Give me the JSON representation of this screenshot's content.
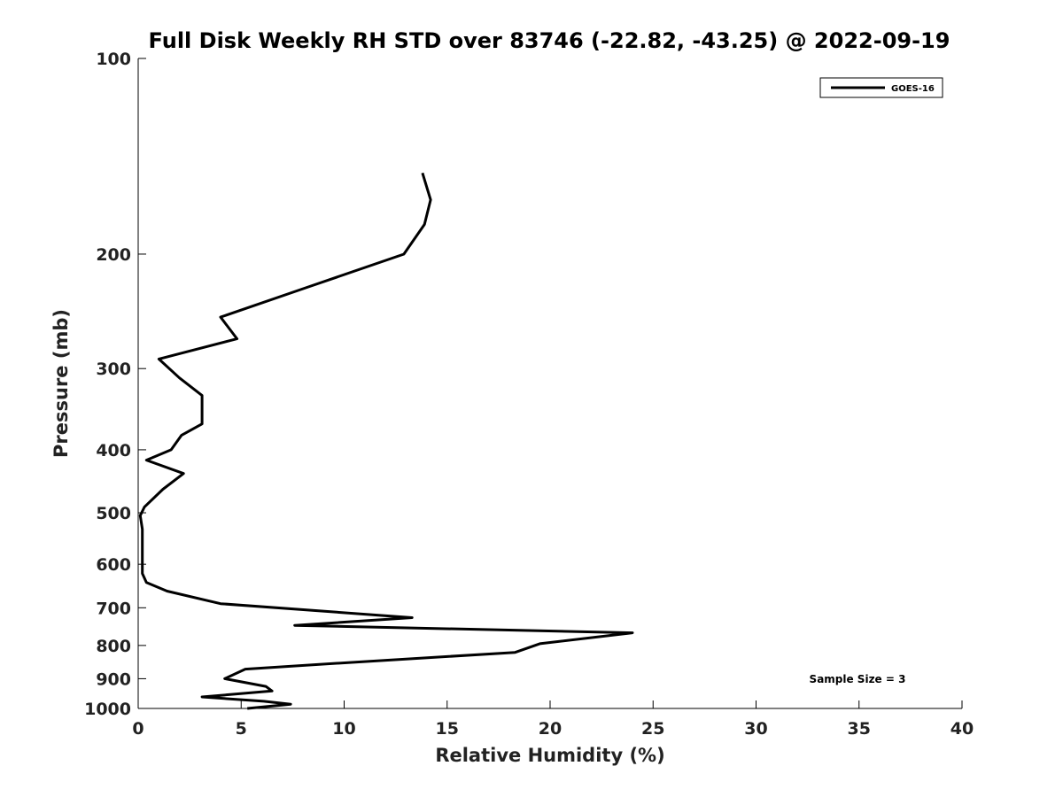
{
  "chart_data": {
    "type": "line",
    "title": "Full Disk Weekly RH STD over 83746 (-22.82, -43.25) @ 2022-09-19",
    "xlabel": "Relative Humidity (%)",
    "ylabel": "Pressure (mb)",
    "xlim": [
      0,
      40
    ],
    "ylim": [
      1000,
      100
    ],
    "yscale": "log",
    "xticks": [
      0,
      5,
      10,
      15,
      20,
      25,
      30,
      35,
      40
    ],
    "yticks": [
      100,
      200,
      300,
      400,
      500,
      600,
      700,
      800,
      900,
      1000
    ],
    "legend": {
      "placement": "top-right",
      "entries": [
        "GOES-16"
      ]
    },
    "annotation": "Sample Size = 3",
    "grid": false,
    "series": [
      {
        "name": "GOES-16",
        "color": "#000000",
        "x": [
          13.8,
          14.2,
          13.9,
          12.9,
          8.2,
          4.0,
          4.8,
          1.0,
          2.0,
          3.1,
          3.1,
          2.1,
          1.6,
          0.4,
          2.2,
          1.2,
          0.3,
          0.1,
          0.2,
          0.2,
          0.2,
          0.4,
          1.4,
          4.0,
          13.3,
          7.6,
          24.0,
          19.5,
          18.3,
          10.2,
          5.2,
          4.2,
          6.2,
          6.5,
          3.1,
          6.1,
          7.4,
          5.3
        ],
        "y": [
          150,
          165,
          180,
          200,
          225,
          250,
          270,
          290,
          310,
          330,
          365,
          380,
          400,
          415,
          435,
          460,
          490,
          505,
          530,
          580,
          620,
          640,
          660,
          690,
          725,
          745,
          765,
          795,
          820,
          850,
          870,
          900,
          925,
          940,
          960,
          975,
          985,
          1000
        ]
      }
    ]
  }
}
